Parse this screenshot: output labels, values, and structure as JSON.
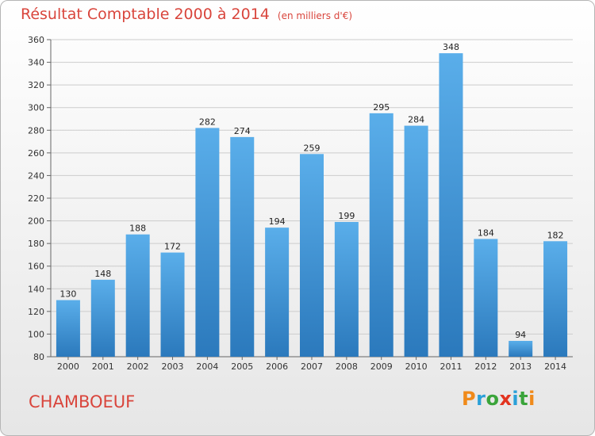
{
  "title": "Résultat Comptable 2000 à 2014",
  "subtitle": "(en milliers d'€)",
  "commune": "CHAMBOEUF",
  "logo": {
    "text": "Proxiti",
    "letters": [
      {
        "ch": "P",
        "color": "#f08a1a"
      },
      {
        "ch": "r",
        "color": "#2aa0d8"
      },
      {
        "ch": "o",
        "color": "#3aa43a"
      },
      {
        "ch": "x",
        "color": "#e2331f"
      },
      {
        "ch": "i",
        "color": "#2aa0d8"
      },
      {
        "ch": "t",
        "color": "#3aa43a"
      },
      {
        "ch": "i",
        "color": "#f08a1a"
      }
    ]
  },
  "colors": {
    "title": "#d9453c",
    "bar_light": "#5aaeea",
    "bar_dark": "#2b79bc",
    "grid": "#cccccc"
  },
  "chart_data": {
    "type": "bar",
    "categories": [
      "2000",
      "2001",
      "2002",
      "2003",
      "2004",
      "2005",
      "2006",
      "2007",
      "2008",
      "2009",
      "2010",
      "2011",
      "2012",
      "2013",
      "2014"
    ],
    "values": [
      130,
      148,
      188,
      172,
      282,
      274,
      194,
      259,
      199,
      295,
      284,
      348,
      184,
      94,
      182
    ],
    "ylim": [
      80,
      360
    ],
    "yticks": [
      80,
      100,
      120,
      140,
      160,
      180,
      200,
      220,
      240,
      260,
      280,
      300,
      320,
      340,
      360
    ],
    "grid": true,
    "data_labels": true
  }
}
